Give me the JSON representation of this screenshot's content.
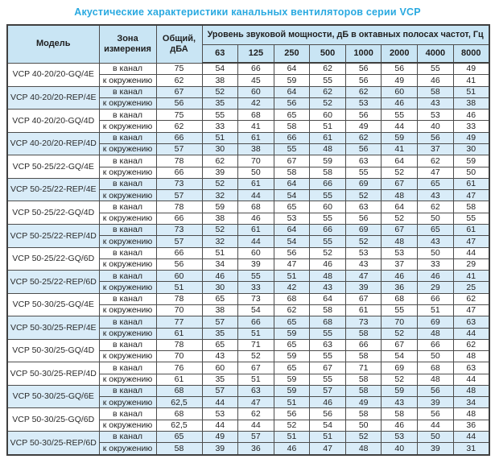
{
  "title": "Акустические характеристики канальных вентиляторов  серии VCP",
  "colors": {
    "title_blue": "#29a9e0",
    "header_bg": "#c9e5f4",
    "stripe_bg": "#d9ecf8",
    "border": "#4d4d4d"
  },
  "table": {
    "headers": {
      "model": "Модель",
      "zone": "Зона измерения",
      "total": "Общий, дБА",
      "octave_span": "Уровень звуковой мощности, дБ в октавных полосах частот, Гц",
      "frequencies": [
        "63",
        "125",
        "250",
        "500",
        "1000",
        "2000",
        "4000",
        "8000"
      ]
    },
    "zone_labels": {
      "duct": "в канал",
      "ambient": "к окружению"
    },
    "rows": [
      {
        "model": "VCP 40-20/20-GQ/4E",
        "shaded": false,
        "duct": {
          "total": "75",
          "levels": [
            54,
            66,
            64,
            62,
            56,
            56,
            55,
            49
          ]
        },
        "ambient": {
          "total": "62",
          "levels": [
            38,
            45,
            59,
            55,
            56,
            49,
            46,
            41
          ]
        }
      },
      {
        "model": "VCP 40-20/20-REP/4E",
        "shaded": true,
        "duct": {
          "total": "67",
          "levels": [
            52,
            60,
            64,
            62,
            62,
            60,
            58,
            51
          ]
        },
        "ambient": {
          "total": "56",
          "levels": [
            35,
            42,
            56,
            52,
            53,
            46,
            43,
            38
          ]
        }
      },
      {
        "model": "VCP 40-20/20-GQ/4D",
        "shaded": false,
        "duct": {
          "total": "75",
          "levels": [
            55,
            68,
            65,
            60,
            56,
            55,
            53,
            46
          ]
        },
        "ambient": {
          "total": "62",
          "levels": [
            33,
            41,
            58,
            51,
            49,
            44,
            40,
            33
          ]
        }
      },
      {
        "model": "VCP 40-20/20-REP/4D",
        "shaded": true,
        "duct": {
          "total": "66",
          "levels": [
            51,
            61,
            66,
            61,
            62,
            59,
            56,
            49
          ]
        },
        "ambient": {
          "total": "57",
          "levels": [
            30,
            38,
            55,
            48,
            56,
            41,
            37,
            30
          ]
        }
      },
      {
        "model": "VCP 50-25/22-GQ/4E",
        "shaded": false,
        "duct": {
          "total": "78",
          "levels": [
            62,
            70,
            67,
            59,
            63,
            64,
            62,
            59
          ]
        },
        "ambient": {
          "total": "66",
          "levels": [
            39,
            50,
            58,
            58,
            55,
            52,
            47,
            50
          ]
        }
      },
      {
        "model": "VCP 50-25/22-REP/4E",
        "shaded": true,
        "duct": {
          "total": "73",
          "levels": [
            52,
            61,
            64,
            66,
            69,
            67,
            65,
            61
          ]
        },
        "ambient": {
          "total": "57",
          "levels": [
            32,
            44,
            54,
            55,
            52,
            48,
            43,
            47
          ]
        }
      },
      {
        "model": "VCP 50-25/22-GQ/4D",
        "shaded": false,
        "duct": {
          "total": "78",
          "levels": [
            59,
            68,
            65,
            60,
            63,
            64,
            62,
            58
          ]
        },
        "ambient": {
          "total": "66",
          "levels": [
            38,
            46,
            53,
            55,
            56,
            52,
            50,
            55
          ]
        }
      },
      {
        "model": "VCP 50-25/22-REP/4D",
        "shaded": true,
        "duct": {
          "total": "73",
          "levels": [
            52,
            61,
            64,
            66,
            69,
            67,
            65,
            61
          ]
        },
        "ambient": {
          "total": "57",
          "levels": [
            32,
            44,
            54,
            55,
            52,
            48,
            43,
            47
          ]
        }
      },
      {
        "model": "VCP 50-25/22-GQ/6D",
        "shaded": false,
        "duct": {
          "total": "66",
          "levels": [
            51,
            60,
            56,
            52,
            53,
            53,
            50,
            44
          ]
        },
        "ambient": {
          "total": "56",
          "levels": [
            34,
            39,
            47,
            46,
            43,
            37,
            33,
            29
          ]
        }
      },
      {
        "model": "VCP 50-25/22-REP/6D",
        "shaded": true,
        "duct": {
          "total": "60",
          "levels": [
            46,
            55,
            51,
            48,
            47,
            46,
            46,
            41
          ]
        },
        "ambient": {
          "total": "51",
          "levels": [
            30,
            33,
            42,
            43,
            39,
            36,
            29,
            25
          ]
        }
      },
      {
        "model": "VCP 50-30/25-GQ/4E",
        "shaded": false,
        "duct": {
          "total": "78",
          "levels": [
            65,
            73,
            68,
            64,
            67,
            68,
            66,
            62
          ]
        },
        "ambient": {
          "total": "70",
          "levels": [
            38,
            54,
            62,
            58,
            61,
            55,
            51,
            47
          ]
        }
      },
      {
        "model": "VCP 50-30/25-REP/4E",
        "shaded": true,
        "duct": {
          "total": "77",
          "levels": [
            57,
            66,
            65,
            68,
            73,
            70,
            69,
            63
          ]
        },
        "ambient": {
          "total": "61",
          "levels": [
            35,
            51,
            59,
            55,
            58,
            52,
            48,
            44
          ]
        }
      },
      {
        "model": "VCP 50-30/25-GQ/4D",
        "shaded": false,
        "duct": {
          "total": "78",
          "levels": [
            65,
            71,
            65,
            63,
            66,
            67,
            66,
            62
          ]
        },
        "ambient": {
          "total": "70",
          "levels": [
            43,
            52,
            59,
            55,
            58,
            54,
            50,
            48
          ]
        }
      },
      {
        "model": "VCP 50-30/25-REP/4D",
        "shaded": false,
        "duct": {
          "total": "76",
          "levels": [
            60,
            67,
            65,
            67,
            71,
            69,
            68,
            63
          ]
        },
        "ambient": {
          "total": "61",
          "levels": [
            35,
            51,
            59,
            55,
            58,
            52,
            48,
            44
          ]
        }
      },
      {
        "model": "VCP 50-30/25-GQ/6E",
        "shaded": true,
        "duct": {
          "total": "68",
          "levels": [
            57,
            63,
            59,
            57,
            58,
            59,
            56,
            48
          ]
        },
        "ambient": {
          "total": "62,5",
          "levels": [
            44,
            47,
            51,
            46,
            49,
            43,
            39,
            34
          ]
        }
      },
      {
        "model": "VCP 50-30/25-GQ/6D",
        "shaded": false,
        "duct": {
          "total": "68",
          "levels": [
            53,
            62,
            56,
            56,
            58,
            58,
            56,
            48
          ]
        },
        "ambient": {
          "total": "62,5",
          "levels": [
            44,
            44,
            52,
            54,
            50,
            46,
            44,
            36
          ]
        }
      },
      {
        "model": "VCP 50-30/25-REP/6D",
        "shaded": true,
        "duct": {
          "total": "65",
          "levels": [
            49,
            57,
            51,
            51,
            52,
            53,
            50,
            44
          ]
        },
        "ambient": {
          "total": "58",
          "levels": [
            39,
            36,
            46,
            47,
            48,
            40,
            39,
            31
          ]
        }
      }
    ]
  }
}
